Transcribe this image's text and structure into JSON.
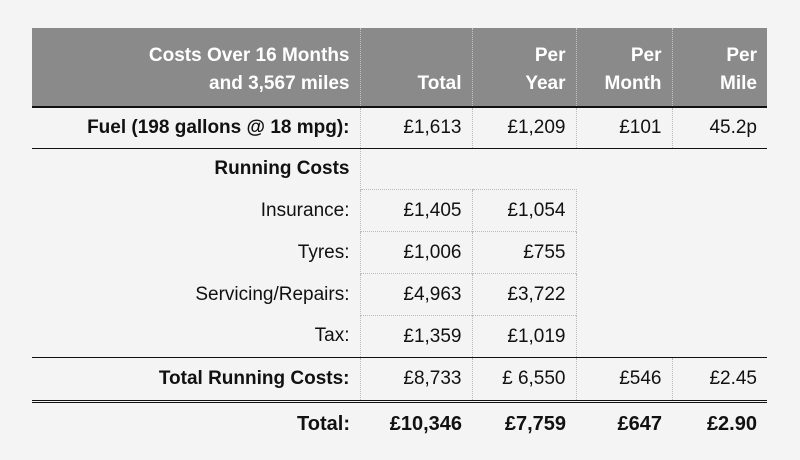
{
  "header": {
    "label_line1": "Costs Over 16 Months",
    "label_line2": "and 3,567 miles",
    "total": "Total",
    "per_year_line1": "Per",
    "per_year_line2": "Year",
    "per_month_line1": "Per",
    "per_month_line2": "Month",
    "per_mile_line1": "Per",
    "per_mile_line2": "Mile"
  },
  "fuel": {
    "label": "Fuel (198 gallons @ 18 mpg):",
    "total": "£1,613",
    "per_year": "£1,209",
    "per_month": "£101",
    "per_mile": "45.2p"
  },
  "running_costs": {
    "heading": "Running Costs",
    "items": [
      {
        "label": "Insurance:",
        "total": "£1,405",
        "per_year": "£1,054"
      },
      {
        "label": "Tyres:",
        "total": "£1,006",
        "per_year": "£755"
      },
      {
        "label": "Servicing/Repairs:",
        "total": "£4,963",
        "per_year": "£3,722"
      },
      {
        "label": "Tax:",
        "total": "£1,359",
        "per_year": "£1,019"
      }
    ]
  },
  "total_running": {
    "label": "Total Running Costs:",
    "total": "£8,733",
    "per_year": "£ 6,550",
    "per_month": "£546",
    "per_mile": "£2.45"
  },
  "grand_total": {
    "label": "Total:",
    "total": "£10,346",
    "per_year": "£7,759",
    "per_month": "£647",
    "per_mile": "£2.90"
  }
}
